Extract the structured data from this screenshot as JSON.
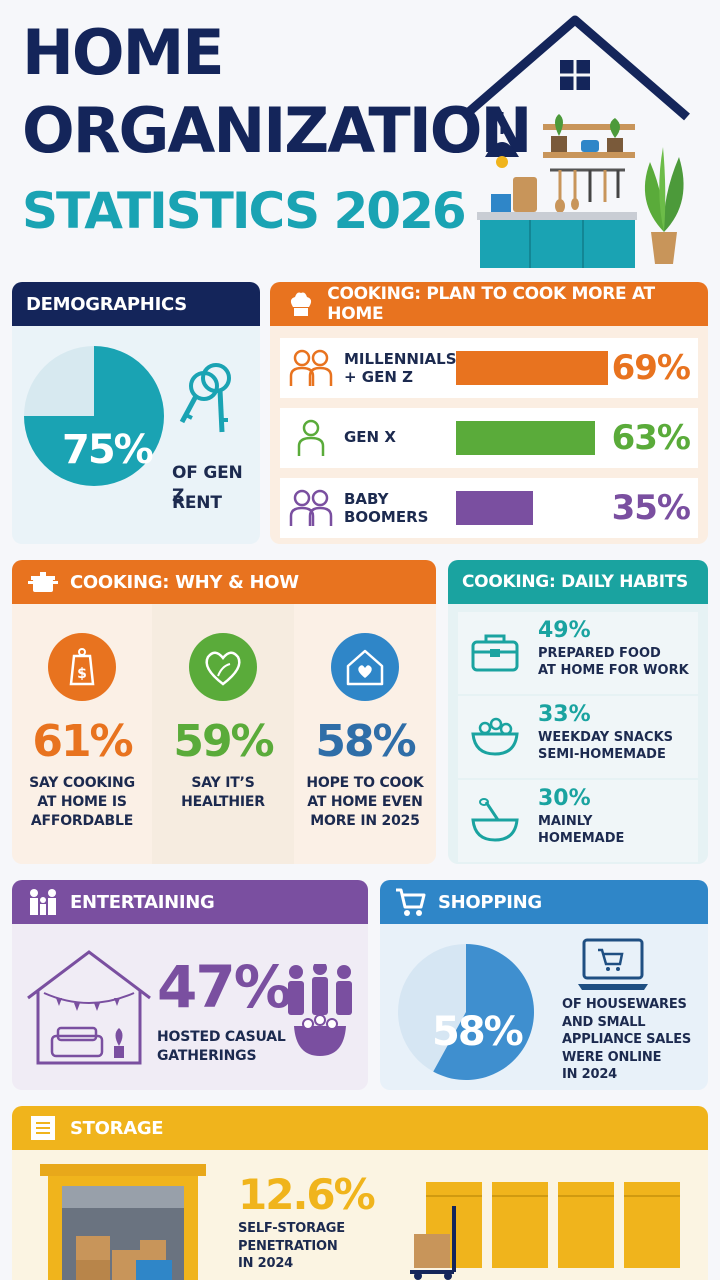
{
  "title": {
    "line1": "HOME",
    "line2": "ORGANIZATION",
    "line3": "STATISTICS 2026"
  },
  "colors": {
    "navy": "#14255a",
    "teal": "#1aa3b3",
    "orange": "#e8731f",
    "green": "#5aab3a",
    "purple": "#7a4fa0",
    "blue": "#2f86c8",
    "yellow": "#f0b41c"
  },
  "demographics": {
    "header": "DEMOGRAPHICS",
    "value": "75%",
    "fraction": 0.75,
    "caption_line1": "OF GEN Z",
    "caption_line2": "RENT",
    "icon": "keys-icon"
  },
  "cook_more": {
    "header": "COOKING: PLAN TO COOK MORE AT HOME",
    "rows": [
      {
        "label_line1": "MILLENNIALS",
        "label_line2": "+ GEN Z",
        "value": "69%",
        "percent": 69,
        "color": "#e8731f"
      },
      {
        "label_line1": "GEN X",
        "label_line2": "",
        "value": "63%",
        "percent": 63,
        "color": "#5aab3a"
      },
      {
        "label_line1": "BABY",
        "label_line2": "BOOMERS",
        "value": "35%",
        "percent": 35,
        "color": "#7a4fa0"
      }
    ]
  },
  "why_how": {
    "header": "COOKING: WHY & HOW",
    "items": [
      {
        "value": "61%",
        "color": "#e8731f",
        "line1": "SAY COOKING",
        "line2": "AT HOME IS",
        "line3": "AFFORDABLE",
        "icon": "money-tag-icon"
      },
      {
        "value": "59%",
        "color": "#5aab3a",
        "line1": "SAY IT’S",
        "line2": "HEALTHIER",
        "line3": "",
        "icon": "heart-leaf-icon"
      },
      {
        "value": "58%",
        "color": "#2f6ea8",
        "line1": "HOPE TO COOK",
        "line2": "AT HOME EVEN",
        "line3": "MORE IN 2025",
        "icon": "house-heart-icon"
      }
    ]
  },
  "daily": {
    "header": "COOKING: DAILY HABITS",
    "items": [
      {
        "value": "49%",
        "line1": "PREPARED FOOD",
        "line2": "AT HOME FOR WORK",
        "icon": "lunchbox-icon"
      },
      {
        "value": "33%",
        "line1": "WEEKDAY SNACKS",
        "line2": "SEMI-HOMEMADE",
        "icon": "snack-bowl-icon"
      },
      {
        "value": "30%",
        "line1": "MAINLY",
        "line2": "HOMEMADE",
        "icon": "mixing-bowl-icon"
      }
    ]
  },
  "entertaining": {
    "header": "ENTERTAINING",
    "value": "47%",
    "line1": "HOSTED CASUAL",
    "line2": "GATHERINGS"
  },
  "shopping": {
    "header": "SHOPPING",
    "value": "58%",
    "fraction": 0.58,
    "line1": "OF HOUSEWARES",
    "line2": "AND SMALL",
    "line3": "APPLIANCE SALES",
    "line4": "WERE ONLINE",
    "line5": "IN 2024"
  },
  "storage": {
    "header": "STORAGE",
    "value": "12.6%",
    "line1": "SELF-STORAGE",
    "line2": "PENETRATION",
    "line3": "IN 2024"
  }
}
